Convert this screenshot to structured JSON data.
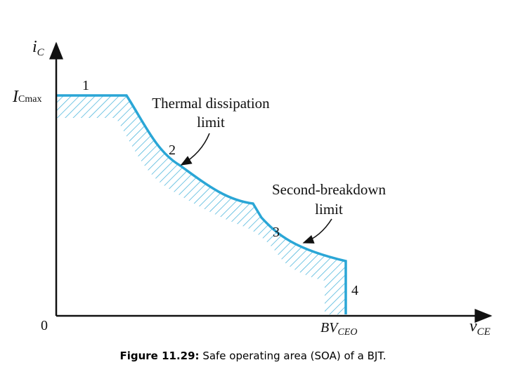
{
  "axes": {
    "y_label": {
      "main": "i",
      "sub": "C"
    },
    "x_label": {
      "main": "v",
      "sub": "CE"
    },
    "origin": "0",
    "y_max_label": {
      "main": "I",
      "sub": "Cmax"
    },
    "x_max_label": {
      "main": "BV",
      "sub": "CEO"
    }
  },
  "regions": [
    {
      "number": "1"
    },
    {
      "number": "2"
    },
    {
      "number": "3"
    },
    {
      "number": "4"
    }
  ],
  "annotations": [
    {
      "lines": [
        "Thermal dissipation",
        "limit"
      ]
    },
    {
      "lines": [
        "Second-breakdown",
        "limit"
      ]
    }
  ],
  "caption": {
    "label": "Figure 11.29:",
    "text": "Safe operating area (SOA) of a BJT."
  }
}
